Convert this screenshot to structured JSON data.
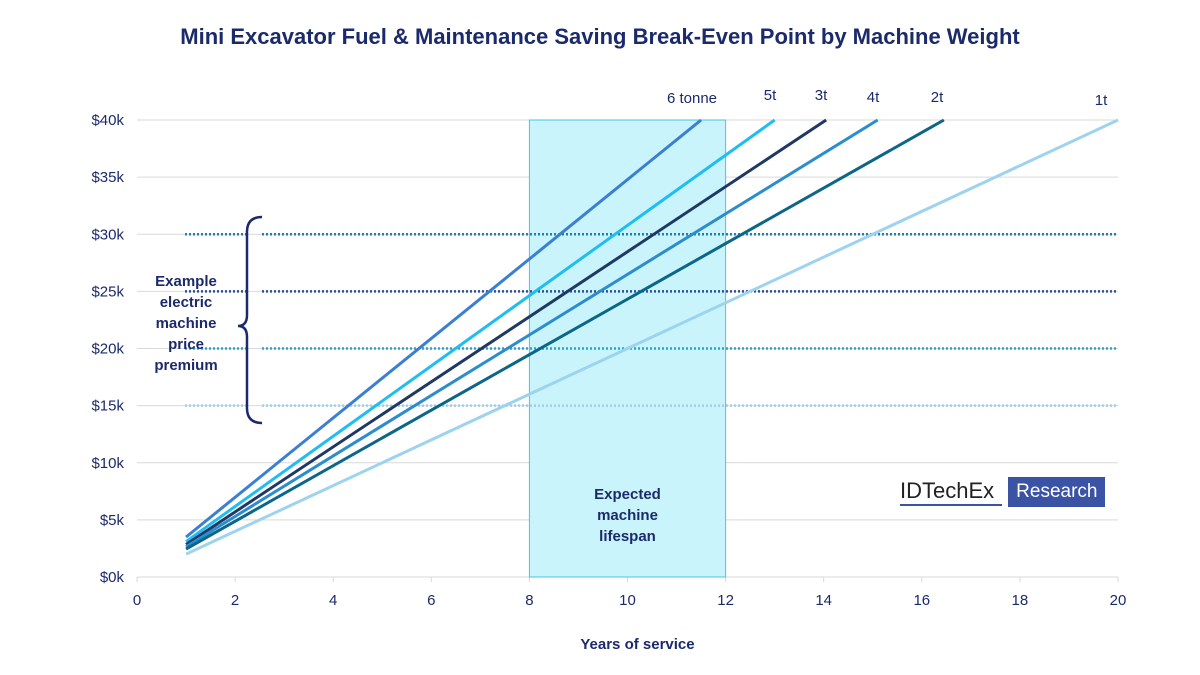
{
  "chart_data": {
    "type": "line",
    "title": "Mini Excavator Fuel & Maintenance Saving Break-Even Point by Machine Weight",
    "xlabel": "Years of service",
    "ylabel": "",
    "xlim": [
      0,
      20
    ],
    "ylim": [
      0,
      40
    ],
    "xticks": [
      "0",
      "2",
      "4",
      "6",
      "8",
      "10",
      "12",
      "14",
      "16",
      "18",
      "20"
    ],
    "yticks": [
      "$0k",
      "$5k",
      "$10k",
      "$15k",
      "$20k",
      "$25k",
      "$30k",
      "$35k",
      "$40k"
    ],
    "grid": "horizontal",
    "series": [
      {
        "name": "6 tonne",
        "color": "#3b7fd3",
        "points": [
          [
            1,
            3.5
          ],
          [
            11.5,
            40
          ]
        ]
      },
      {
        "name": "5t",
        "color": "#1fbdf2",
        "points": [
          [
            1,
            3.1
          ],
          [
            13.0,
            40
          ]
        ]
      },
      {
        "name": "3t",
        "color": "#1f3864",
        "points": [
          [
            1,
            2.85
          ],
          [
            14.05,
            40
          ]
        ]
      },
      {
        "name": "4t",
        "color": "#2b8dcf",
        "points": [
          [
            1,
            2.65
          ],
          [
            15.1,
            40
          ]
        ]
      },
      {
        "name": "2t",
        "color": "#0b6688",
        "points": [
          [
            1,
            2.45
          ],
          [
            16.45,
            40
          ]
        ]
      },
      {
        "name": "1t",
        "color": "#9dd3ef",
        "points": [
          [
            1,
            2.0
          ],
          [
            20,
            40
          ]
        ]
      }
    ],
    "reference_lines": [
      {
        "y": 30,
        "color": "#1b7fb8"
      },
      {
        "y": 25,
        "color": "#2c4f9e"
      },
      {
        "y": 20,
        "color": "#22a3dc"
      },
      {
        "y": 15,
        "color": "#a2cde3"
      }
    ],
    "shaded_region": {
      "x": [
        8,
        12
      ],
      "label": [
        "Expected",
        "machine",
        "lifespan"
      ],
      "fill": "#c9f4fc",
      "stroke": "#3fc8ea"
    },
    "bracket_label": [
      "Example",
      "electric",
      "machine",
      "price",
      "premium"
    ]
  },
  "logo": {
    "name": "IDTechEx",
    "tag": "Research"
  }
}
